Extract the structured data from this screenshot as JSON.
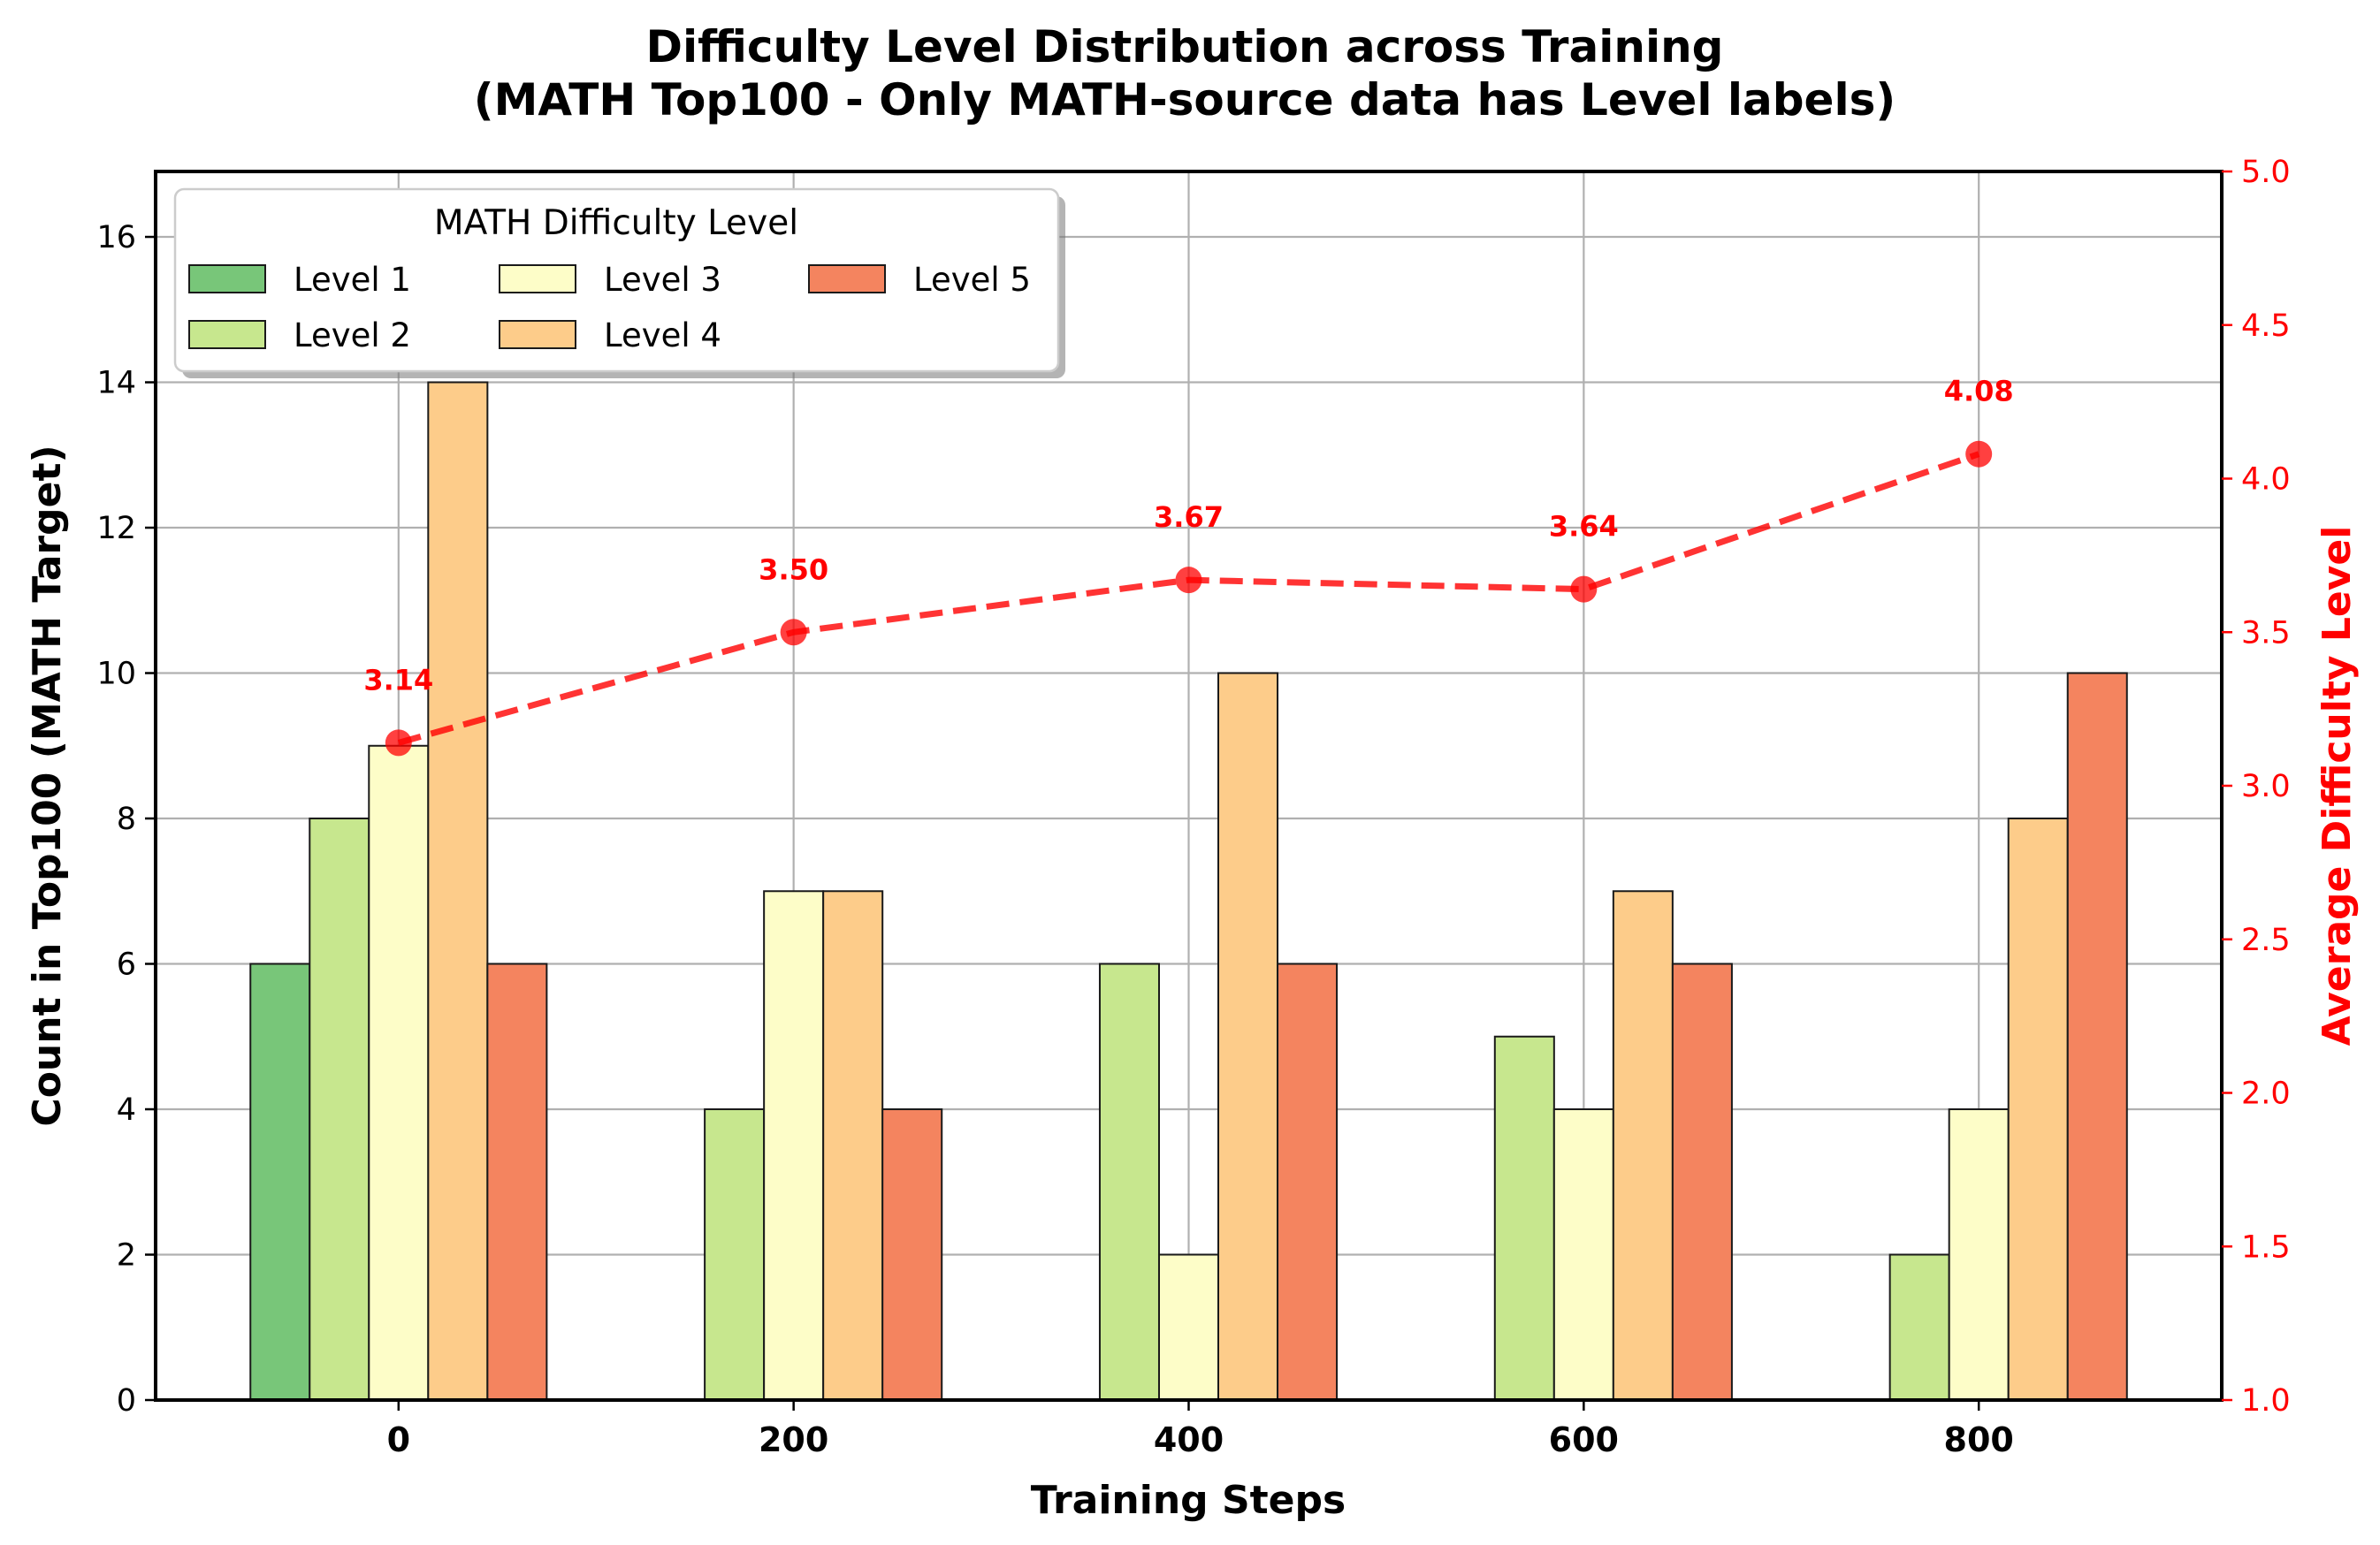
{
  "chart_data": {
    "type": "bar",
    "title_lines": [
      "Difficulty Level Distribution across Training",
      "(MATH Top100 - Only MATH-source data has Level labels)"
    ],
    "xlabel": "Training Steps",
    "ylabel": "Count in Top100 (MATH Target)",
    "y2label": "Average Difficulty Level",
    "categories": [
      "0",
      "200",
      "400",
      "600",
      "800"
    ],
    "x": [
      0,
      200,
      400,
      600,
      800
    ],
    "xlim": [
      -123,
      923
    ],
    "ylim": [
      0,
      16.9
    ],
    "y_ticks": [
      0,
      2,
      4,
      6,
      8,
      10,
      12,
      14,
      16
    ],
    "y2lim": [
      1.0,
      5.0
    ],
    "y2_ticks": [
      "1.0",
      "1.5",
      "2.0",
      "2.5",
      "3.0",
      "3.5",
      "4.0",
      "4.5",
      "5.0"
    ],
    "grid": true,
    "bar_width_steps": 30,
    "legend": {
      "title": "MATH Difficulty Level",
      "placement": "top-left",
      "columns": 3
    },
    "series": [
      {
        "name": "Level 1",
        "color": "#78c679",
        "values": [
          6,
          0,
          0,
          0,
          0
        ]
      },
      {
        "name": "Level 2",
        "color": "#c7e78e",
        "values": [
          8,
          4,
          6,
          5,
          2
        ]
      },
      {
        "name": "Level 3",
        "color": "#fdfdc8",
        "values": [
          9,
          7,
          2,
          4,
          4
        ]
      },
      {
        "name": "Level 4",
        "color": "#fdcc8a",
        "values": [
          14,
          7,
          10,
          7,
          8
        ]
      },
      {
        "name": "Level 5",
        "color": "#f4845f",
        "values": [
          6,
          4,
          6,
          6,
          10
        ]
      }
    ],
    "line_series": {
      "name": "Average Difficulty Level",
      "axis": "right",
      "color": "#ff0000",
      "values": [
        3.14,
        3.5,
        3.67,
        3.64,
        4.08
      ],
      "labels": [
        "3.14",
        "3.50",
        "3.67",
        "3.64",
        "4.08"
      ]
    }
  }
}
